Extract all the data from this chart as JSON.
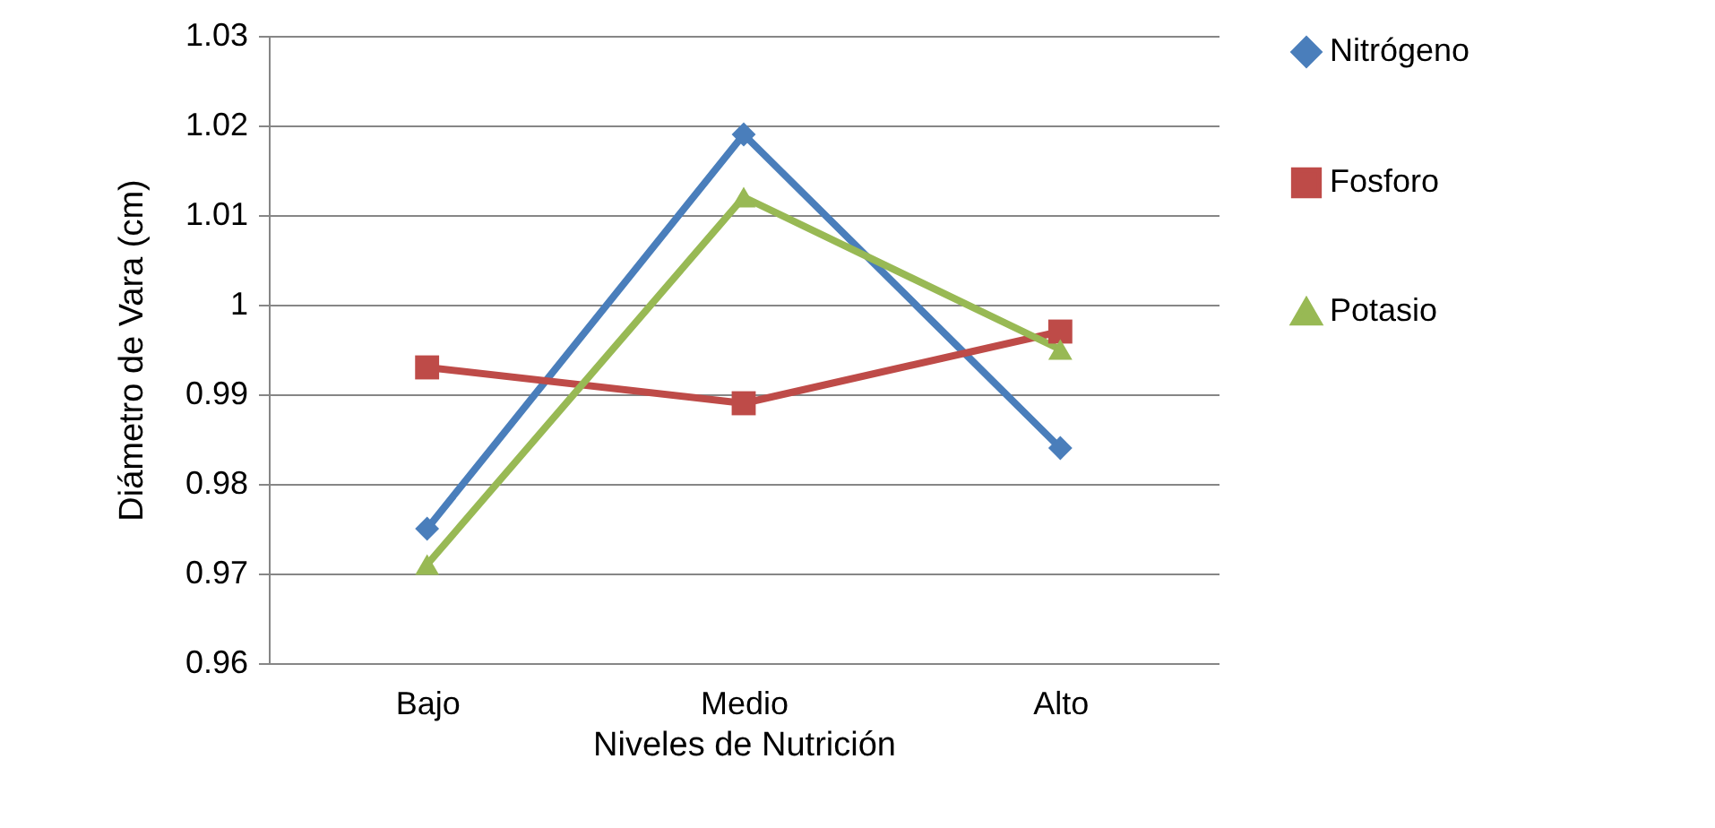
{
  "chart_data": {
    "type": "line",
    "xlabel": "Niveles de Nutrición",
    "ylabel": "Diámetro de Vara (cm)",
    "categories": [
      "Bajo",
      "Medio",
      "Alto"
    ],
    "series": [
      {
        "name": "Nitrógeno",
        "color": "#4a7ebb",
        "marker": "diamond",
        "values": [
          0.975,
          1.019,
          0.984
        ]
      },
      {
        "name": "Fosforo",
        "color": "#be4b48",
        "marker": "square",
        "values": [
          0.993,
          0.989,
          0.997
        ]
      },
      {
        "name": "Potasio",
        "color": "#98b954",
        "marker": "triangle",
        "values": [
          0.971,
          1.012,
          0.995
        ]
      }
    ],
    "ylim": [
      0.96,
      1.03
    ],
    "yticks": [
      0.96,
      0.97,
      0.98,
      0.99,
      1,
      1.01,
      1.02,
      1.03
    ],
    "grid": "y",
    "legend": "right"
  }
}
